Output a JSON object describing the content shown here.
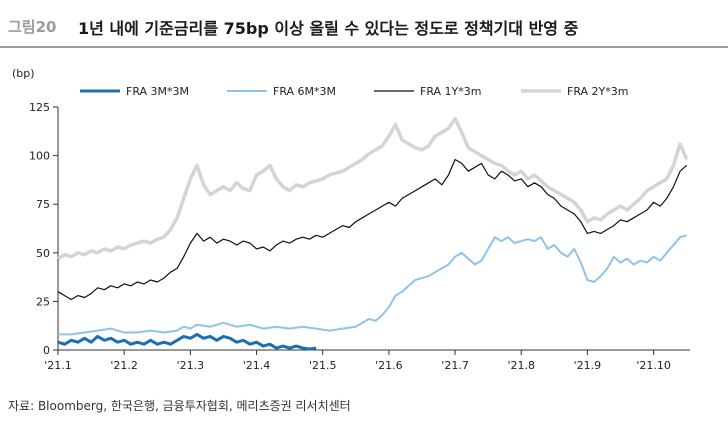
{
  "header": {
    "figure_label": "그림20",
    "title": "1년 내에 기준금리를 75bp 이상 올릴 수 있다는 정도로 정책기대 반영 중"
  },
  "source": "자료: Bloomberg, 한국은행, 금융투자협회, 메리츠증권 리서치센터",
  "chart_data": {
    "type": "line",
    "title": "1년 내에 기준금리를 75bp 이상 올릴 수 있다는 정도로 정책기대 반영 중",
    "ylabel": "(bp)",
    "xlabel": "",
    "ylim": [
      0,
      125
    ],
    "yticks": [
      0,
      25,
      50,
      75,
      100,
      125
    ],
    "x_tick_labels": [
      "'21.1",
      "'21.2",
      "'21.3",
      "'21.4",
      "'21.5",
      "'21.6",
      "'21.7",
      "'21.8",
      "'21.9",
      "'21.10"
    ],
    "x_tick_months": [
      0,
      1,
      2,
      3,
      4,
      5,
      6,
      7,
      8,
      9
    ],
    "x_range": [
      0,
      9.55
    ],
    "series": [
      {
        "name": "FRA 3M*3M",
        "color": "#1f6db3",
        "points": [
          [
            0,
            4
          ],
          [
            0.1,
            3
          ],
          [
            0.2,
            5
          ],
          [
            0.3,
            4
          ],
          [
            0.4,
            6
          ],
          [
            0.5,
            4
          ],
          [
            0.6,
            7
          ],
          [
            0.7,
            5
          ],
          [
            0.8,
            6
          ],
          [
            0.9,
            4
          ],
          [
            1.0,
            5
          ],
          [
            1.1,
            3
          ],
          [
            1.2,
            4
          ],
          [
            1.3,
            3
          ],
          [
            1.4,
            5
          ],
          [
            1.5,
            3
          ],
          [
            1.6,
            4
          ],
          [
            1.7,
            3
          ],
          [
            1.8,
            5
          ],
          [
            1.9,
            7
          ],
          [
            2.0,
            6
          ],
          [
            2.1,
            8
          ],
          [
            2.2,
            6
          ],
          [
            2.3,
            7
          ],
          [
            2.4,
            5
          ],
          [
            2.5,
            7
          ],
          [
            2.6,
            6
          ],
          [
            2.7,
            4
          ],
          [
            2.8,
            5
          ],
          [
            2.9,
            3
          ],
          [
            3.0,
            4
          ],
          [
            3.1,
            2
          ],
          [
            3.2,
            3
          ],
          [
            3.3,
            1
          ],
          [
            3.4,
            2
          ],
          [
            3.5,
            1
          ],
          [
            3.6,
            2
          ],
          [
            3.7,
            1
          ],
          [
            3.8,
            0.5
          ],
          [
            3.9,
            1
          ]
        ]
      },
      {
        "name": "FRA 6M*3M",
        "color": "#8fc3e8",
        "points": [
          [
            0,
            8
          ],
          [
            0.2,
            8
          ],
          [
            0.4,
            9
          ],
          [
            0.6,
            10
          ],
          [
            0.8,
            11
          ],
          [
            1.0,
            9
          ],
          [
            1.2,
            9
          ],
          [
            1.4,
            10
          ],
          [
            1.6,
            9
          ],
          [
            1.8,
            10
          ],
          [
            1.9,
            12
          ],
          [
            2.0,
            11
          ],
          [
            2.1,
            13
          ],
          [
            2.3,
            12
          ],
          [
            2.5,
            14
          ],
          [
            2.7,
            12
          ],
          [
            2.9,
            13
          ],
          [
            3.1,
            11
          ],
          [
            3.3,
            12
          ],
          [
            3.5,
            11
          ],
          [
            3.7,
            12
          ],
          [
            3.9,
            11
          ],
          [
            4.1,
            10
          ],
          [
            4.3,
            11
          ],
          [
            4.5,
            12
          ],
          [
            4.6,
            14
          ],
          [
            4.7,
            16
          ],
          [
            4.8,
            15
          ],
          [
            4.9,
            18
          ],
          [
            5.0,
            22
          ],
          [
            5.1,
            28
          ],
          [
            5.2,
            30
          ],
          [
            5.3,
            33
          ],
          [
            5.4,
            36
          ],
          [
            5.5,
            37
          ],
          [
            5.6,
            38
          ],
          [
            5.7,
            40
          ],
          [
            5.8,
            42
          ],
          [
            5.9,
            44
          ],
          [
            6.0,
            48
          ],
          [
            6.1,
            50
          ],
          [
            6.2,
            47
          ],
          [
            6.3,
            44
          ],
          [
            6.4,
            46
          ],
          [
            6.5,
            52
          ],
          [
            6.6,
            58
          ],
          [
            6.7,
            56
          ],
          [
            6.8,
            58
          ],
          [
            6.9,
            55
          ],
          [
            7.0,
            56
          ],
          [
            7.1,
            57
          ],
          [
            7.2,
            56
          ],
          [
            7.3,
            58
          ],
          [
            7.4,
            52
          ],
          [
            7.5,
            54
          ],
          [
            7.6,
            50
          ],
          [
            7.7,
            48
          ],
          [
            7.8,
            52
          ],
          [
            7.9,
            45
          ],
          [
            8.0,
            36
          ],
          [
            8.1,
            35
          ],
          [
            8.2,
            38
          ],
          [
            8.3,
            42
          ],
          [
            8.4,
            48
          ],
          [
            8.5,
            45
          ],
          [
            8.6,
            47
          ],
          [
            8.7,
            44
          ],
          [
            8.8,
            46
          ],
          [
            8.9,
            45
          ],
          [
            9.0,
            48
          ],
          [
            9.1,
            46
          ],
          [
            9.2,
            50
          ],
          [
            9.3,
            54
          ],
          [
            9.4,
            58
          ],
          [
            9.5,
            59
          ]
        ]
      },
      {
        "name": "FRA 1Y*3m",
        "color": "#111111",
        "points": [
          [
            0,
            30
          ],
          [
            0.1,
            28
          ],
          [
            0.2,
            26
          ],
          [
            0.3,
            28
          ],
          [
            0.4,
            27
          ],
          [
            0.5,
            29
          ],
          [
            0.6,
            32
          ],
          [
            0.7,
            31
          ],
          [
            0.8,
            33
          ],
          [
            0.9,
            32
          ],
          [
            1.0,
            34
          ],
          [
            1.1,
            33
          ],
          [
            1.2,
            35
          ],
          [
            1.3,
            34
          ],
          [
            1.4,
            36
          ],
          [
            1.5,
            35
          ],
          [
            1.6,
            37
          ],
          [
            1.7,
            40
          ],
          [
            1.8,
            42
          ],
          [
            1.9,
            48
          ],
          [
            2.0,
            55
          ],
          [
            2.1,
            60
          ],
          [
            2.2,
            56
          ],
          [
            2.3,
            58
          ],
          [
            2.4,
            55
          ],
          [
            2.5,
            57
          ],
          [
            2.6,
            56
          ],
          [
            2.7,
            54
          ],
          [
            2.8,
            56
          ],
          [
            2.9,
            55
          ],
          [
            3.0,
            52
          ],
          [
            3.1,
            53
          ],
          [
            3.2,
            51
          ],
          [
            3.3,
            54
          ],
          [
            3.4,
            56
          ],
          [
            3.5,
            55
          ],
          [
            3.6,
            57
          ],
          [
            3.7,
            58
          ],
          [
            3.8,
            57
          ],
          [
            3.9,
            59
          ],
          [
            4.0,
            58
          ],
          [
            4.1,
            60
          ],
          [
            4.2,
            62
          ],
          [
            4.3,
            64
          ],
          [
            4.4,
            63
          ],
          [
            4.5,
            66
          ],
          [
            4.6,
            68
          ],
          [
            4.7,
            70
          ],
          [
            4.8,
            72
          ],
          [
            4.9,
            74
          ],
          [
            5.0,
            76
          ],
          [
            5.1,
            74
          ],
          [
            5.2,
            78
          ],
          [
            5.3,
            80
          ],
          [
            5.4,
            82
          ],
          [
            5.5,
            84
          ],
          [
            5.6,
            86
          ],
          [
            5.7,
            88
          ],
          [
            5.8,
            85
          ],
          [
            5.9,
            90
          ],
          [
            6.0,
            98
          ],
          [
            6.1,
            96
          ],
          [
            6.2,
            92
          ],
          [
            6.3,
            94
          ],
          [
            6.4,
            96
          ],
          [
            6.5,
            90
          ],
          [
            6.6,
            88
          ],
          [
            6.7,
            92
          ],
          [
            6.8,
            90
          ],
          [
            6.9,
            87
          ],
          [
            7.0,
            88
          ],
          [
            7.1,
            84
          ],
          [
            7.2,
            86
          ],
          [
            7.3,
            84
          ],
          [
            7.4,
            80
          ],
          [
            7.5,
            78
          ],
          [
            7.6,
            74
          ],
          [
            7.7,
            72
          ],
          [
            7.8,
            70
          ],
          [
            7.9,
            66
          ],
          [
            8.0,
            60
          ],
          [
            8.1,
            61
          ],
          [
            8.2,
            60
          ],
          [
            8.3,
            62
          ],
          [
            8.4,
            64
          ],
          [
            8.5,
            67
          ],
          [
            8.6,
            66
          ],
          [
            8.7,
            68
          ],
          [
            8.8,
            70
          ],
          [
            8.9,
            72
          ],
          [
            9.0,
            76
          ],
          [
            9.1,
            74
          ],
          [
            9.2,
            78
          ],
          [
            9.3,
            84
          ],
          [
            9.4,
            92
          ],
          [
            9.5,
            95
          ]
        ]
      },
      {
        "name": "FRA 2Y*3m",
        "color": "#d4d4d4",
        "points": [
          [
            0,
            47
          ],
          [
            0.1,
            49
          ],
          [
            0.2,
            48
          ],
          [
            0.3,
            50
          ],
          [
            0.4,
            49
          ],
          [
            0.5,
            51
          ],
          [
            0.6,
            50
          ],
          [
            0.7,
            52
          ],
          [
            0.8,
            51
          ],
          [
            0.9,
            53
          ],
          [
            1.0,
            52
          ],
          [
            1.1,
            54
          ],
          [
            1.2,
            55
          ],
          [
            1.3,
            56
          ],
          [
            1.4,
            55
          ],
          [
            1.5,
            57
          ],
          [
            1.6,
            58
          ],
          [
            1.7,
            62
          ],
          [
            1.8,
            68
          ],
          [
            1.9,
            78
          ],
          [
            2.0,
            88
          ],
          [
            2.1,
            95
          ],
          [
            2.2,
            85
          ],
          [
            2.3,
            80
          ],
          [
            2.4,
            82
          ],
          [
            2.5,
            84
          ],
          [
            2.6,
            82
          ],
          [
            2.7,
            86
          ],
          [
            2.8,
            83
          ],
          [
            2.9,
            82
          ],
          [
            3.0,
            90
          ],
          [
            3.1,
            92
          ],
          [
            3.2,
            95
          ],
          [
            3.3,
            88
          ],
          [
            3.4,
            84
          ],
          [
            3.5,
            82
          ],
          [
            3.6,
            85
          ],
          [
            3.7,
            84
          ],
          [
            3.8,
            86
          ],
          [
            3.9,
            87
          ],
          [
            4.0,
            88
          ],
          [
            4.1,
            90
          ],
          [
            4.2,
            91
          ],
          [
            4.3,
            92
          ],
          [
            4.4,
            94
          ],
          [
            4.5,
            96
          ],
          [
            4.6,
            98
          ],
          [
            4.7,
            101
          ],
          [
            4.8,
            103
          ],
          [
            4.9,
            105
          ],
          [
            5.0,
            110
          ],
          [
            5.1,
            116
          ],
          [
            5.2,
            108
          ],
          [
            5.3,
            106
          ],
          [
            5.4,
            104
          ],
          [
            5.5,
            103
          ],
          [
            5.6,
            105
          ],
          [
            5.7,
            110
          ],
          [
            5.8,
            112
          ],
          [
            5.9,
            114
          ],
          [
            6.0,
            119
          ],
          [
            6.1,
            112
          ],
          [
            6.2,
            104
          ],
          [
            6.3,
            102
          ],
          [
            6.4,
            100
          ],
          [
            6.5,
            98
          ],
          [
            6.6,
            96
          ],
          [
            6.7,
            95
          ],
          [
            6.8,
            92
          ],
          [
            6.9,
            90
          ],
          [
            7.0,
            92
          ],
          [
            7.1,
            88
          ],
          [
            7.2,
            90
          ],
          [
            7.3,
            87
          ],
          [
            7.4,
            84
          ],
          [
            7.5,
            82
          ],
          [
            7.6,
            80
          ],
          [
            7.7,
            78
          ],
          [
            7.8,
            76
          ],
          [
            7.9,
            72
          ],
          [
            8.0,
            66
          ],
          [
            8.1,
            68
          ],
          [
            8.2,
            67
          ],
          [
            8.3,
            70
          ],
          [
            8.4,
            72
          ],
          [
            8.5,
            74
          ],
          [
            8.6,
            72
          ],
          [
            8.7,
            75
          ],
          [
            8.8,
            78
          ],
          [
            8.9,
            82
          ],
          [
            9.0,
            84
          ],
          [
            9.1,
            86
          ],
          [
            9.2,
            88
          ],
          [
            9.3,
            95
          ],
          [
            9.4,
            106
          ],
          [
            9.5,
            98
          ]
        ]
      }
    ],
    "legend_position": "top"
  }
}
